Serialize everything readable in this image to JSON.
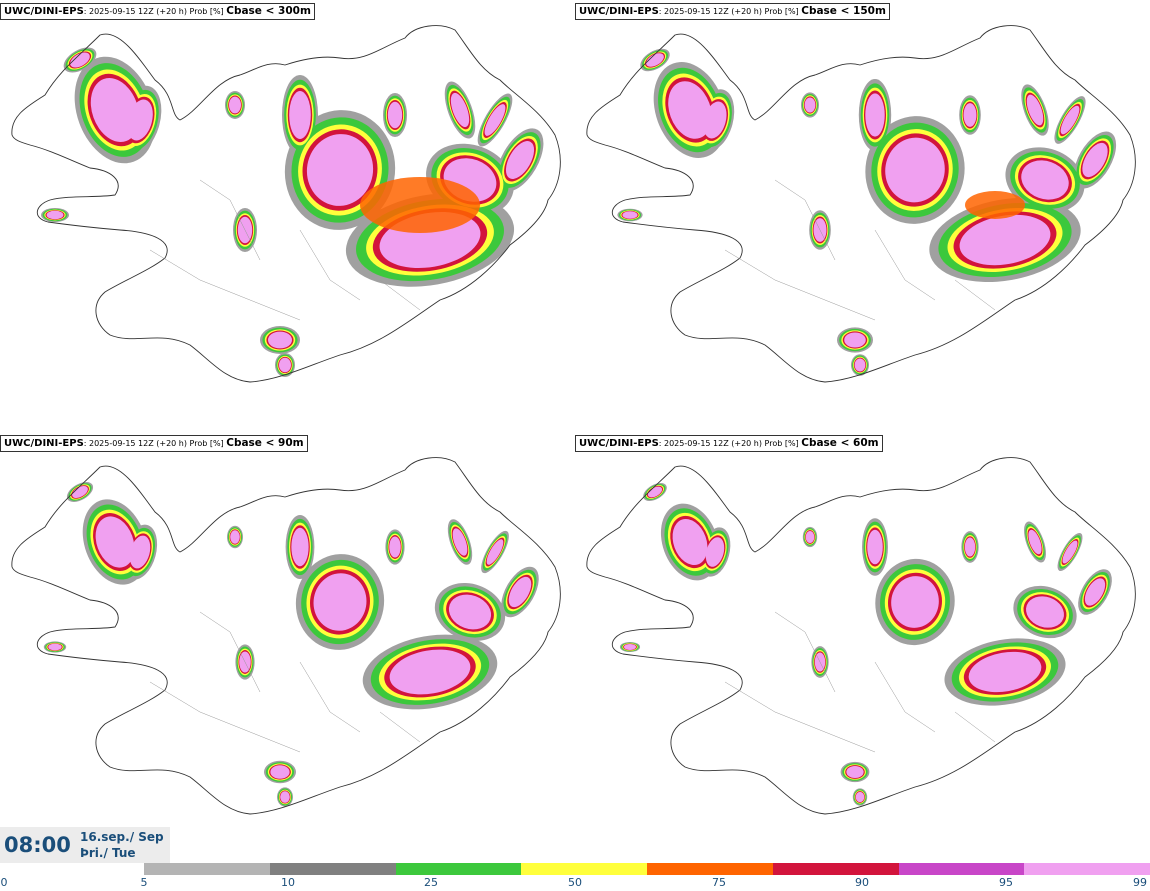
{
  "panels": [
    {
      "model": "UWC/DINI-EPS",
      "info": ": 2025-09-15 12Z (+20 h) Prob [%] ",
      "cbase": "Cbase < 300m",
      "level": 4
    },
    {
      "model": "UWC/DINI-EPS",
      "info": ": 2025-09-15 12Z (+20 h) Prob [%] ",
      "cbase": "Cbase < 150m",
      "level": 3
    },
    {
      "model": "UWC/DINI-EPS",
      "info": ": 2025-09-15 12Z (+20 h) Prob [%] ",
      "cbase": "Cbase < 90m",
      "level": 2
    },
    {
      "model": "UWC/DINI-EPS",
      "info": ": 2025-09-15 12Z (+20 h) Prob [%] ",
      "cbase": "Cbase < 60m",
      "level": 1
    }
  ],
  "time": {
    "hour": "08:00",
    "date_line1": "16.sep./ Sep",
    "date_line2": "Þri./ Tue"
  },
  "colorbar": {
    "ticks": [
      "0",
      "5",
      "10",
      "25",
      "50",
      "75",
      "90",
      "95",
      "99"
    ],
    "colors": [
      "#b4b4b4",
      "#808080",
      "#3cc83c",
      "#ffff3c",
      "#ff6400",
      "#d2143c",
      "#c846c8",
      "#f0a0f0"
    ]
  }
}
